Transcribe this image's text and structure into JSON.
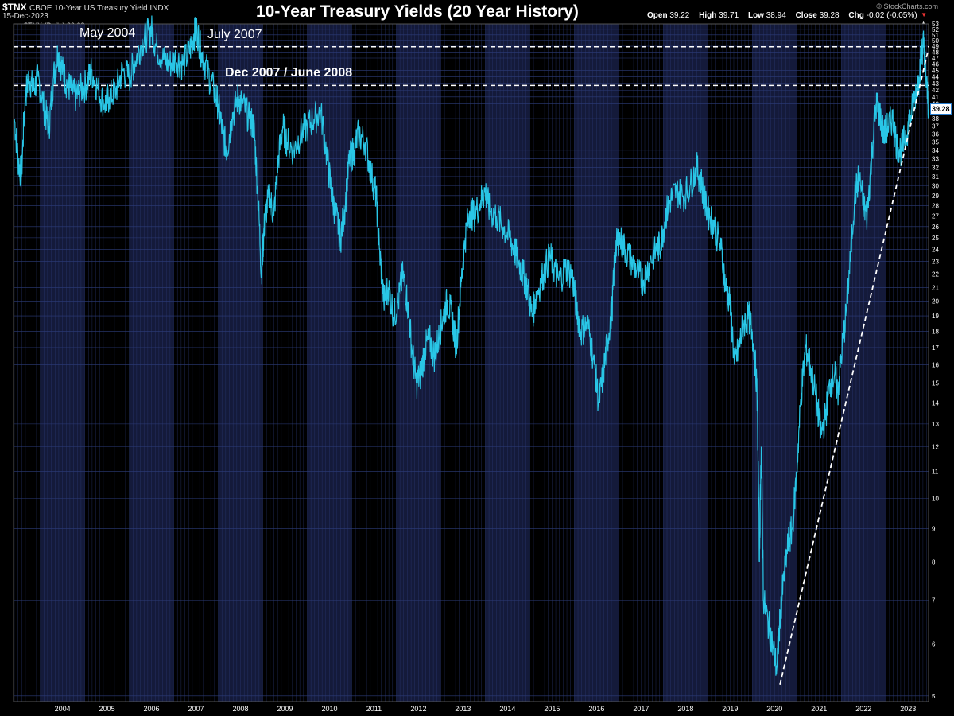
{
  "header": {
    "symbol": "$TNX",
    "description": "CBOE 10-Year US Treasury Yield INDX",
    "date": "15-Dec-2023",
    "legend_label": "$TNX (Daily) 39.28",
    "ohlc": {
      "open_label": "Open",
      "open": "39.22",
      "high_label": "High",
      "high": "39.71",
      "low_label": "Low",
      "low": "38.94",
      "close_label": "Close",
      "close": "39.28",
      "chg_label": "Chg",
      "chg": "-0.02 (-0.05%)"
    },
    "brand": "© StockCharts.com",
    "brand_arrow": "▼",
    "scroll_icon": "▲"
  },
  "colors": {
    "background": "#000000",
    "band_light": "#141a3a",
    "band_dark": "#000000",
    "grid": "#2c3c7a",
    "series": "#29c6e6",
    "dashed": "#ffffff"
  },
  "chart_data": {
    "type": "line",
    "title": "10-Year Treasury Yields (20 Year History)",
    "xlabel": "",
    "ylabel": "",
    "yscale": "log",
    "ylim": [
      4.9,
      53
    ],
    "xlim": [
      2003.4,
      2023.96
    ],
    "x_ticks": [
      "2004",
      "2005",
      "2006",
      "2007",
      "2008",
      "2009",
      "2010",
      "2011",
      "2012",
      "2013",
      "2014",
      "2015",
      "2016",
      "2017",
      "2018",
      "2019",
      "2020",
      "2021",
      "2022",
      "2023"
    ],
    "y_ticks": [
      5,
      6,
      7,
      8,
      9,
      10,
      11,
      12,
      13,
      14,
      15,
      16,
      17,
      18,
      19,
      20,
      21,
      22,
      23,
      24,
      25,
      26,
      27,
      28,
      29,
      30,
      31,
      32,
      33,
      34,
      35,
      36,
      37,
      38,
      39,
      40,
      41,
      42,
      43,
      44,
      45,
      46,
      47,
      48,
      49,
      50,
      51,
      52,
      53
    ],
    "last_value": "39.28",
    "series": [
      {
        "name": "$TNX (Daily)",
        "points": [
          [
            2003.42,
            38.0
          ],
          [
            2003.5,
            33.0
          ],
          [
            2003.58,
            31.0
          ],
          [
            2003.66,
            41.0
          ],
          [
            2003.75,
            44.0
          ],
          [
            2003.85,
            42.0
          ],
          [
            2003.95,
            44.0
          ],
          [
            2004.1,
            39.0
          ],
          [
            2004.2,
            37.0
          ],
          [
            2004.3,
            44.0
          ],
          [
            2004.4,
            48.0
          ],
          [
            2004.5,
            45.0
          ],
          [
            2004.6,
            43.0
          ],
          [
            2004.7,
            42.0
          ],
          [
            2004.8,
            41.0
          ],
          [
            2004.9,
            42.0
          ],
          [
            2005.05,
            43.0
          ],
          [
            2005.15,
            45.0
          ],
          [
            2005.3,
            42.0
          ],
          [
            2005.45,
            40.0
          ],
          [
            2005.55,
            41.0
          ],
          [
            2005.7,
            42.0
          ],
          [
            2005.85,
            45.0
          ],
          [
            2006.0,
            44.0
          ],
          [
            2006.1,
            46.0
          ],
          [
            2006.25,
            49.0
          ],
          [
            2006.4,
            51.0
          ],
          [
            2006.5,
            52.0
          ],
          [
            2006.6,
            49.0
          ],
          [
            2006.75,
            47.0
          ],
          [
            2006.9,
            46.0
          ],
          [
            2007.05,
            47.0
          ],
          [
            2007.2,
            46.0
          ],
          [
            2007.35,
            48.0
          ],
          [
            2007.45,
            51.0
          ],
          [
            2007.52,
            52.0
          ],
          [
            2007.62,
            48.0
          ],
          [
            2007.75,
            45.0
          ],
          [
            2007.9,
            42.0
          ],
          [
            2008.0,
            40.0
          ],
          [
            2008.1,
            36.0
          ],
          [
            2008.2,
            34.0
          ],
          [
            2008.3,
            38.0
          ],
          [
            2008.45,
            41.0
          ],
          [
            2008.55,
            40.0
          ],
          [
            2008.7,
            38.0
          ],
          [
            2008.8,
            37.0
          ],
          [
            2008.88,
            30.0
          ],
          [
            2008.97,
            22.0
          ],
          [
            2009.0,
            24.0
          ],
          [
            2009.05,
            27.0
          ],
          [
            2009.15,
            29.0
          ],
          [
            2009.25,
            27.0
          ],
          [
            2009.35,
            33.0
          ],
          [
            2009.45,
            37.0
          ],
          [
            2009.55,
            35.0
          ],
          [
            2009.7,
            34.0
          ],
          [
            2009.85,
            36.0
          ],
          [
            2010.0,
            37.0
          ],
          [
            2010.15,
            38.0
          ],
          [
            2010.3,
            39.0
          ],
          [
            2010.45,
            33.0
          ],
          [
            2010.55,
            29.0
          ],
          [
            2010.65,
            27.0
          ],
          [
            2010.75,
            25.0
          ],
          [
            2010.85,
            28.0
          ],
          [
            2010.95,
            33.0
          ],
          [
            2011.05,
            34.0
          ],
          [
            2011.15,
            36.0
          ],
          [
            2011.3,
            35.0
          ],
          [
            2011.45,
            31.0
          ],
          [
            2011.55,
            29.0
          ],
          [
            2011.62,
            24.0
          ],
          [
            2011.72,
            20.0
          ],
          [
            2011.82,
            21.0
          ],
          [
            2011.95,
            19.0
          ],
          [
            2012.05,
            20.0
          ],
          [
            2012.15,
            22.0
          ],
          [
            2012.25,
            20.0
          ],
          [
            2012.35,
            17.0
          ],
          [
            2012.45,
            15.0
          ],
          [
            2012.55,
            15.5
          ],
          [
            2012.65,
            17.0
          ],
          [
            2012.75,
            17.5
          ],
          [
            2012.85,
            16.5
          ],
          [
            2012.95,
            17.5
          ],
          [
            2013.05,
            19.0
          ],
          [
            2013.15,
            20.0
          ],
          [
            2013.25,
            19.0
          ],
          [
            2013.35,
            17.0
          ],
          [
            2013.45,
            21.0
          ],
          [
            2013.55,
            25.0
          ],
          [
            2013.65,
            27.5
          ],
          [
            2013.75,
            27.0
          ],
          [
            2013.9,
            28.5
          ],
          [
            2014.0,
            29.5
          ],
          [
            2014.1,
            27.5
          ],
          [
            2014.25,
            27.0
          ],
          [
            2014.4,
            26.0
          ],
          [
            2014.55,
            25.0
          ],
          [
            2014.65,
            24.0
          ],
          [
            2014.75,
            23.0
          ],
          [
            2014.85,
            22.0
          ],
          [
            2014.95,
            21.0
          ],
          [
            2015.05,
            19.0
          ],
          [
            2015.15,
            20.5
          ],
          [
            2015.3,
            22.0
          ],
          [
            2015.45,
            23.5
          ],
          [
            2015.55,
            22.5
          ],
          [
            2015.65,
            21.5
          ],
          [
            2015.8,
            22.5
          ],
          [
            2015.95,
            22.0
          ],
          [
            2016.05,
            19.5
          ],
          [
            2016.15,
            18.0
          ],
          [
            2016.3,
            18.5
          ],
          [
            2016.45,
            16.0
          ],
          [
            2016.55,
            14.0
          ],
          [
            2016.65,
            15.5
          ],
          [
            2016.75,
            17.5
          ],
          [
            2016.85,
            19.5
          ],
          [
            2016.92,
            24.0
          ],
          [
            2017.0,
            25.0
          ],
          [
            2017.15,
            24.0
          ],
          [
            2017.3,
            23.0
          ],
          [
            2017.45,
            22.0
          ],
          [
            2017.55,
            21.5
          ],
          [
            2017.7,
            23.0
          ],
          [
            2017.85,
            24.0
          ],
          [
            2017.95,
            24.5
          ],
          [
            2018.05,
            27.0
          ],
          [
            2018.15,
            28.5
          ],
          [
            2018.3,
            29.5
          ],
          [
            2018.45,
            29.0
          ],
          [
            2018.6,
            30.0
          ],
          [
            2018.75,
            32.0
          ],
          [
            2018.85,
            30.5
          ],
          [
            2018.95,
            28.0
          ],
          [
            2019.05,
            27.0
          ],
          [
            2019.15,
            26.0
          ],
          [
            2019.3,
            24.0
          ],
          [
            2019.4,
            21.0
          ],
          [
            2019.5,
            20.0
          ],
          [
            2019.6,
            16.0
          ],
          [
            2019.7,
            17.0
          ],
          [
            2019.8,
            18.5
          ],
          [
            2019.92,
            19.0
          ],
          [
            2020.0,
            18.0
          ],
          [
            2020.1,
            15.0
          ],
          [
            2020.16,
            8.0
          ],
          [
            2020.2,
            12.0
          ],
          [
            2020.25,
            7.0
          ],
          [
            2020.35,
            6.5
          ],
          [
            2020.45,
            6.0
          ],
          [
            2020.55,
            5.5
          ],
          [
            2020.62,
            6.5
          ],
          [
            2020.7,
            7.5
          ],
          [
            2020.8,
            8.5
          ],
          [
            2020.9,
            9.0
          ],
          [
            2021.0,
            11.0
          ],
          [
            2021.1,
            14.5
          ],
          [
            2021.2,
            17.0
          ],
          [
            2021.3,
            16.0
          ],
          [
            2021.45,
            14.0
          ],
          [
            2021.55,
            12.5
          ],
          [
            2021.65,
            13.5
          ],
          [
            2021.75,
            15.0
          ],
          [
            2021.85,
            15.5
          ],
          [
            2021.92,
            14.5
          ],
          [
            2022.0,
            16.5
          ],
          [
            2022.1,
            19.0
          ],
          [
            2022.2,
            23.0
          ],
          [
            2022.3,
            29.0
          ],
          [
            2022.4,
            31.0
          ],
          [
            2022.5,
            28.0
          ],
          [
            2022.58,
            27.0
          ],
          [
            2022.68,
            33.0
          ],
          [
            2022.78,
            40.0
          ],
          [
            2022.85,
            39.0
          ],
          [
            2022.95,
            36.0
          ],
          [
            2023.05,
            37.0
          ],
          [
            2023.15,
            38.0
          ],
          [
            2023.25,
            34.5
          ],
          [
            2023.35,
            34.0
          ],
          [
            2023.45,
            36.0
          ],
          [
            2023.55,
            38.0
          ],
          [
            2023.65,
            41.0
          ],
          [
            2023.75,
            44.0
          ],
          [
            2023.8,
            48.0
          ],
          [
            2023.85,
            49.5
          ],
          [
            2023.9,
            44.0
          ],
          [
            2023.96,
            39.28
          ]
        ]
      }
    ],
    "horizontal_lines": [
      {
        "label": "May 2004",
        "value": 48.9,
        "style": "dashed"
      },
      {
        "label": "Dec 2007 / June 2008",
        "value": 42.7,
        "style": "dashed"
      }
    ],
    "trendline": {
      "from": [
        2020.62,
        5.2
      ],
      "to": [
        2023.94,
        48.0
      ],
      "style": "dashed"
    },
    "annotations": [
      {
        "text": "May 2004"
      },
      {
        "text": "July 2007"
      },
      {
        "text": "Dec 2007 / June 2008"
      }
    ]
  }
}
